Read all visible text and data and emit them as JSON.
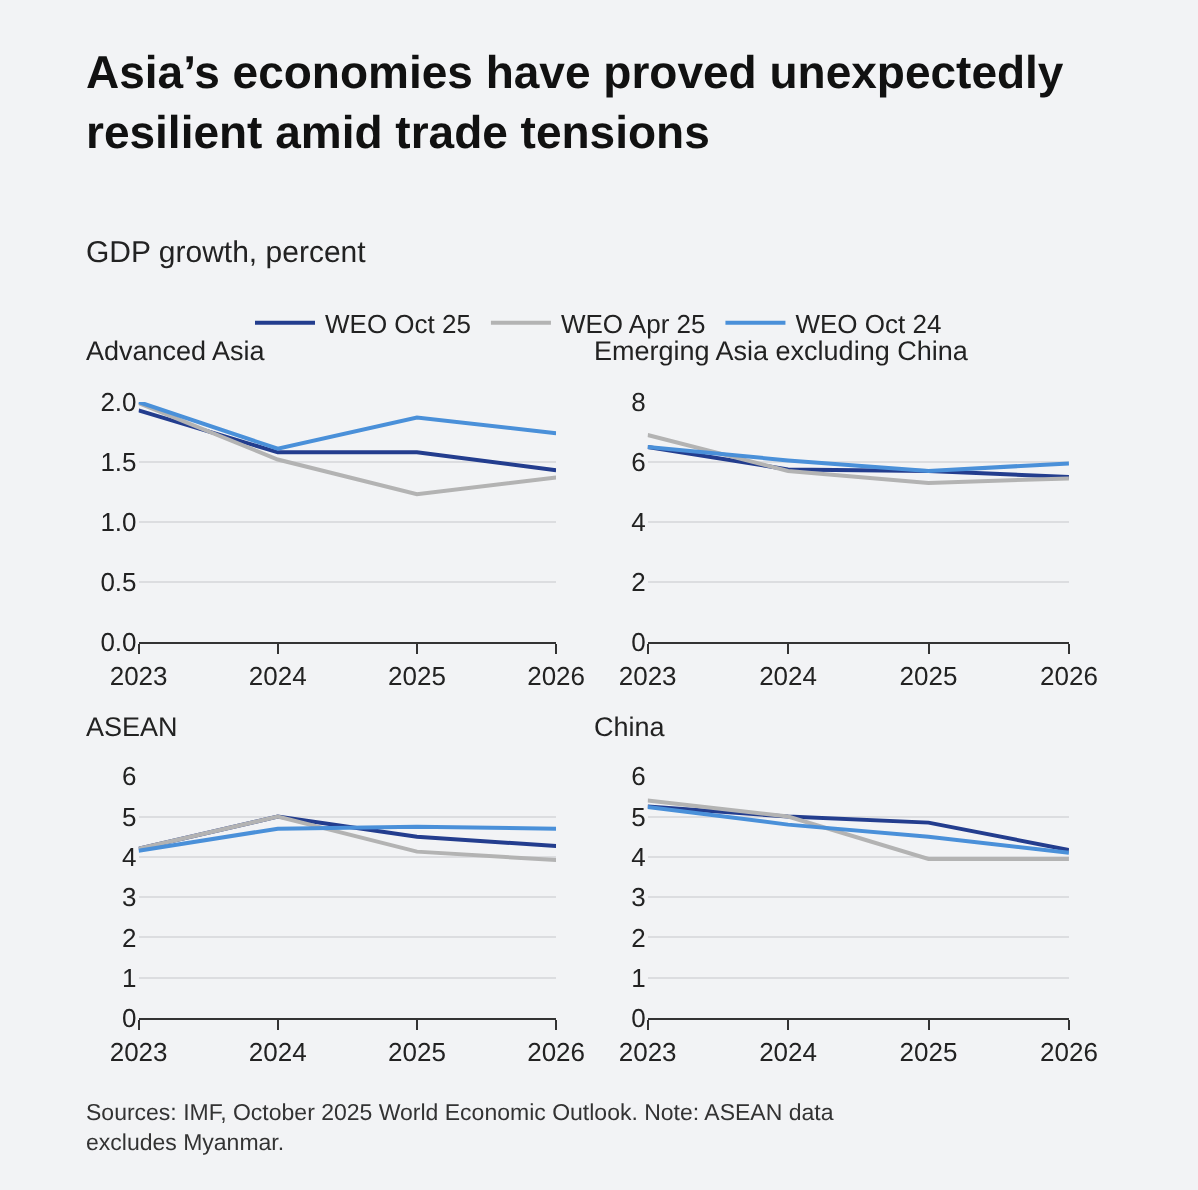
{
  "chart_data": [
    {
      "type": "line",
      "title": "Advanced Asia",
      "annotations": [
        "Asia’s economies have proved unexpectedly resilient amid trade tensions",
        "GDP growth, percent",
        "Sources: IMF, October 2025 World Economic Outlook. Note: ASEAN data excludes Myanmar."
      ],
      "x": [
        2023,
        2024,
        2025,
        2026
      ],
      "xlim": [
        2023,
        2026
      ],
      "xticks": [
        2023,
        2024,
        2025,
        2026
      ],
      "ylim": [
        0,
        2.0
      ],
      "yticks": [
        {
          "value": 0,
          "label": "0.0"
        },
        {
          "value": 0.5,
          "label": "0.5"
        },
        {
          "value": 1,
          "label": "1.0"
        },
        {
          "value": 1.5,
          "label": "1.5"
        },
        {
          "value": 2,
          "label": "2.0"
        }
      ],
      "grid": "y",
      "legend": "top",
      "marker": "none",
      "line_style": "solid",
      "series": [
        {
          "name": "WEO Oct 25",
          "color": "#233d8e",
          "values": [
            1.93,
            1.58,
            1.58,
            1.43
          ]
        },
        {
          "name": "WEO Apr 25",
          "color": "#b3b3b3",
          "values": [
            1.99,
            1.52,
            1.23,
            1.37
          ]
        },
        {
          "name": "WEO Oct 24",
          "color": "#4a90d9",
          "values": [
            2.0,
            1.61,
            1.87,
            1.74
          ]
        }
      ]
    },
    {
      "type": "line",
      "title": "Emerging Asia excluding China",
      "x": [
        2023,
        2024,
        2025,
        2026
      ],
      "xlim": [
        2023,
        2026
      ],
      "xticks": [
        2023,
        2024,
        2025,
        2026
      ],
      "ylim": [
        0,
        8
      ],
      "yticks": [
        0,
        2,
        4,
        6,
        8
      ],
      "grid": "y",
      "marker": "none",
      "line_style": "solid",
      "series": [
        {
          "color": "#233d8e",
          "values": [
            6.5,
            5.75,
            5.7,
            5.5
          ]
        },
        {
          "color": "#b3b3b3",
          "values": [
            6.9,
            5.7,
            5.3,
            5.45
          ]
        },
        {
          "color": "#4a90d9",
          "values": [
            6.5,
            6.05,
            5.7,
            5.95
          ]
        }
      ]
    },
    {
      "type": "line",
      "title": "ASEAN",
      "x": [
        2023,
        2024,
        2025,
        2026
      ],
      "xlim": [
        2023,
        2026
      ],
      "xticks": [
        2023,
        2024,
        2025,
        2026
      ],
      "ylim": [
        0,
        6
      ],
      "yticks": [
        0,
        1,
        2,
        3,
        4,
        5,
        6
      ],
      "grid": "y",
      "marker": "none",
      "line_style": "solid",
      "series": [
        {
          "color": "#233d8e",
          "values": [
            4.2,
            5.0,
            4.5,
            4.27
          ]
        },
        {
          "color": "#b3b3b3",
          "values": [
            4.2,
            5.0,
            4.13,
            3.92
          ]
        },
        {
          "color": "#4a90d9",
          "values": [
            4.15,
            4.7,
            4.75,
            4.7
          ]
        }
      ]
    },
    {
      "type": "line",
      "title": "China",
      "x": [
        2023,
        2024,
        2025,
        2026
      ],
      "xlim": [
        2023,
        2026
      ],
      "xticks": [
        2023,
        2024,
        2025,
        2026
      ],
      "ylim": [
        0,
        6
      ],
      "yticks": [
        0,
        1,
        2,
        3,
        4,
        5,
        6
      ],
      "grid": "y",
      "marker": "none",
      "line_style": "solid",
      "series": [
        {
          "color": "#233d8e",
          "values": [
            5.25,
            5.0,
            4.85,
            4.17
          ]
        },
        {
          "color": "#b3b3b3",
          "values": [
            5.4,
            5.0,
            3.95,
            3.95
          ]
        },
        {
          "color": "#4a90d9",
          "values": [
            5.24,
            4.8,
            4.5,
            4.1
          ]
        }
      ]
    }
  ]
}
